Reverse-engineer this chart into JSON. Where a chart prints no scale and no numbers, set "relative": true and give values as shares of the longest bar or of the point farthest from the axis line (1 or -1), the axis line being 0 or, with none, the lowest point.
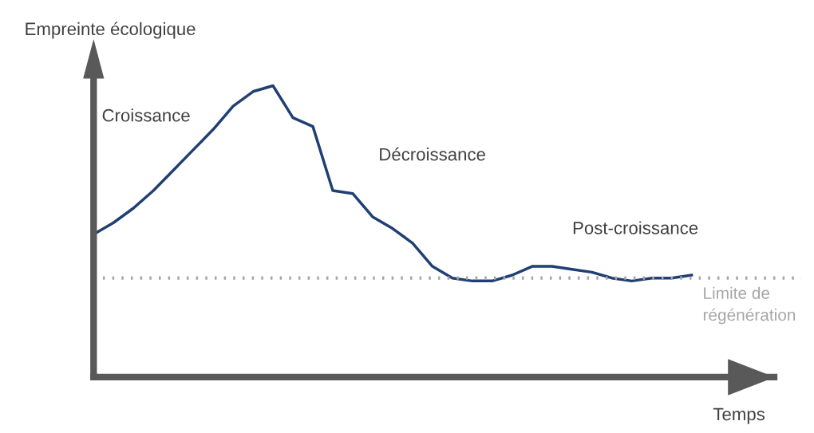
{
  "chart_data": {
    "type": "line",
    "relative": true,
    "xlabel": "Temps",
    "ylabel": "Empreinte écologique",
    "categories": [
      null,
      null,
      null,
      null,
      null,
      null,
      null,
      null,
      null,
      null,
      null,
      null,
      null,
      null,
      null,
      null,
      null,
      null,
      null,
      null,
      null,
      null,
      null,
      null,
      null,
      null,
      null,
      null,
      null,
      null,
      null
    ],
    "series": [
      {
        "color": "#203f73",
        "values": [
          0.49,
          0.53,
          0.58,
          0.64,
          0.71,
          0.78,
          0.85,
          0.93,
          0.98,
          1.0,
          0.89,
          0.86,
          0.64,
          0.63,
          0.55,
          0.51,
          0.46,
          0.38,
          0.34,
          0.33,
          0.33,
          0.35,
          0.38,
          0.38,
          0.37,
          0.36,
          0.34,
          0.33,
          0.34,
          0.34,
          0.35
        ]
      }
    ],
    "ref_lines": [
      {
        "axis": "y",
        "value": 0.34,
        "label": "Limite de régénération",
        "color": "#a6a6a6",
        "line_style": "dotted"
      }
    ],
    "annotations": [
      "Croissance",
      "Décroissance",
      "Post-croissance"
    ],
    "legend": false
  }
}
